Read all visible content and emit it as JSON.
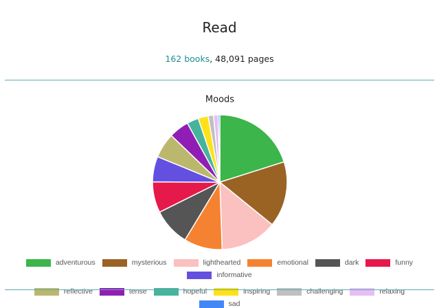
{
  "page": {
    "title": "Read",
    "books": "162 books",
    "pages": ", 48,091 pages"
  },
  "chart_data": {
    "type": "pie",
    "title": "Moods",
    "categories": [
      "adventurous",
      "mysterious",
      "lighthearted",
      "emotional",
      "dark",
      "funny",
      "informative",
      "reflective",
      "tense",
      "hopeful",
      "inspiring",
      "challenging",
      "relaxing",
      "sad"
    ],
    "values": [
      20.1,
      15.7,
      13.6,
      9.2,
      9.0,
      7.4,
      6.1,
      6.0,
      4.8,
      2.8,
      2.4,
      1.3,
      1.1,
      0.4
    ],
    "colors": [
      "#3cb54a",
      "#9a6324",
      "#fbc0c0",
      "#f58231",
      "#555555",
      "#e6194b",
      "#6450e0",
      "#bbb86e",
      "#911eb4",
      "#46b39d",
      "#ffe119",
      "#c0c0c0",
      "#e6bef5",
      "#4287f5"
    ]
  }
}
